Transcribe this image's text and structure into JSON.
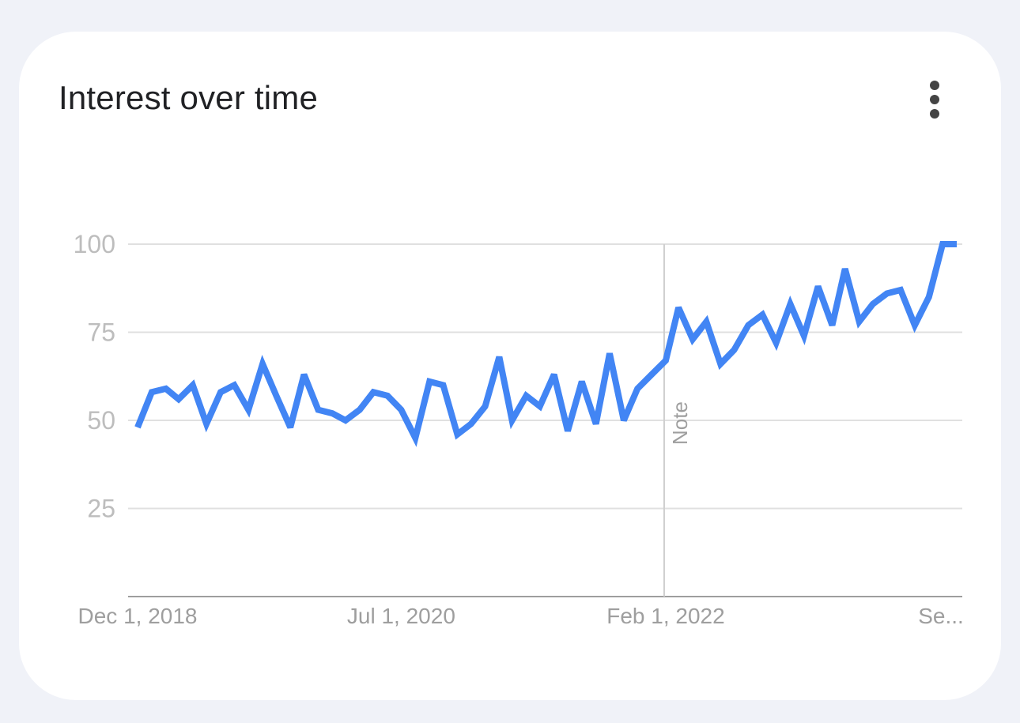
{
  "card": {
    "title": "Interest over time",
    "menu_icon": "more-vert-icon"
  },
  "chart_data": {
    "type": "line",
    "title": "Interest over time",
    "xlabel": "",
    "ylabel": "",
    "ylim": [
      0,
      100
    ],
    "yticks": [
      "25",
      "50",
      "75",
      "100"
    ],
    "xticks": [
      {
        "label": "Dec 1, 2018",
        "date": "2018-12-01"
      },
      {
        "label": "Jul 1, 2020",
        "date": "2020-07-01"
      },
      {
        "label": "Feb 1, 2022",
        "date": "2022-02-01"
      },
      {
        "label": "Se...",
        "date": "2023-09-01"
      }
    ],
    "grid": true,
    "annotation": {
      "label": "Note",
      "date": "2022-02-01"
    },
    "color": "#4285f4",
    "series": [
      {
        "x": [
          "2018-12-01",
          "2019-01-01",
          "2019-02-01",
          "2019-03-01",
          "2019-04-01",
          "2019-05-01",
          "2019-06-01",
          "2019-07-01",
          "2019-08-01",
          "2019-09-01",
          "2019-10-01",
          "2019-11-01",
          "2019-12-01",
          "2020-01-01",
          "2020-02-01",
          "2020-03-01",
          "2020-04-01",
          "2020-05-01",
          "2020-06-01",
          "2020-07-01",
          "2020-08-01",
          "2020-09-01",
          "2020-10-01",
          "2020-11-01",
          "2020-12-01",
          "2021-01-01",
          "2021-02-01",
          "2021-03-01",
          "2021-04-01",
          "2021-05-01",
          "2021-06-01",
          "2021-07-01",
          "2021-08-01",
          "2021-09-01",
          "2021-10-01",
          "2021-11-01",
          "2021-12-01",
          "2022-01-01",
          "2022-02-01",
          "2022-03-01",
          "2022-04-01",
          "2022-05-01",
          "2022-06-01",
          "2022-07-01",
          "2022-08-01",
          "2022-09-01",
          "2022-10-01",
          "2022-11-01",
          "2022-12-01",
          "2023-01-01",
          "2023-02-01",
          "2023-03-01",
          "2023-04-01",
          "2023-05-01",
          "2023-06-01",
          "2023-07-01",
          "2023-08-01",
          "2023-09-01",
          "2023-10-01",
          "2023-11-01"
        ],
        "values": [
          48,
          58,
          59,
          56,
          60,
          49,
          58,
          60,
          53,
          66,
          57,
          48,
          63,
          53,
          52,
          50,
          53,
          58,
          57,
          53,
          45,
          61,
          60,
          46,
          49,
          54,
          68,
          50,
          57,
          54,
          63,
          47,
          61,
          49,
          69,
          50,
          59,
          63,
          67,
          82,
          73,
          78,
          66,
          70,
          77,
          80,
          72,
          83,
          74,
          88,
          77,
          93,
          78,
          83,
          86,
          87,
          77,
          85,
          100,
          100
        ],
        "note": "last two x positions collapse into the rising end of the line"
      }
    ]
  }
}
